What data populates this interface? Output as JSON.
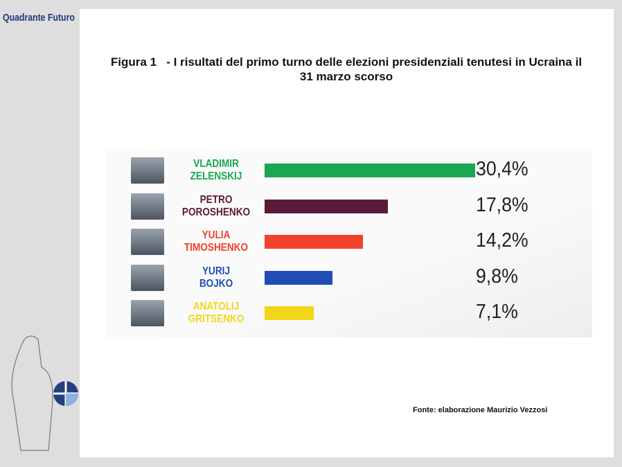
{
  "brand": "Quadrante Futuro",
  "chart_data": {
    "type": "bar",
    "orientation": "horizontal",
    "title": "Figura 1   - I risultati del primo turno delle elezioni presidenziali tenutesi in Ucraina il 31 marzo scorso",
    "categories": [
      "VLADIMIR ZELENSKIJ",
      "PETRO POROSHENKO",
      "YULIA TIMOSHENKO",
      "YURIJ BOJKO",
      "ANATOLIJ GRITSENKO"
    ],
    "values": [
      30.4,
      17.8,
      14.2,
      9.8,
      7.1
    ],
    "value_labels": [
      "30,4%",
      "17,8%",
      "14,2%",
      "9,8%",
      "7,1%"
    ],
    "colors": [
      "#1aa653",
      "#5a1a38",
      "#f2412c",
      "#1f4db3",
      "#f3d619"
    ],
    "source": "Fonte: elaborazione Maurizio Vezzosi"
  }
}
